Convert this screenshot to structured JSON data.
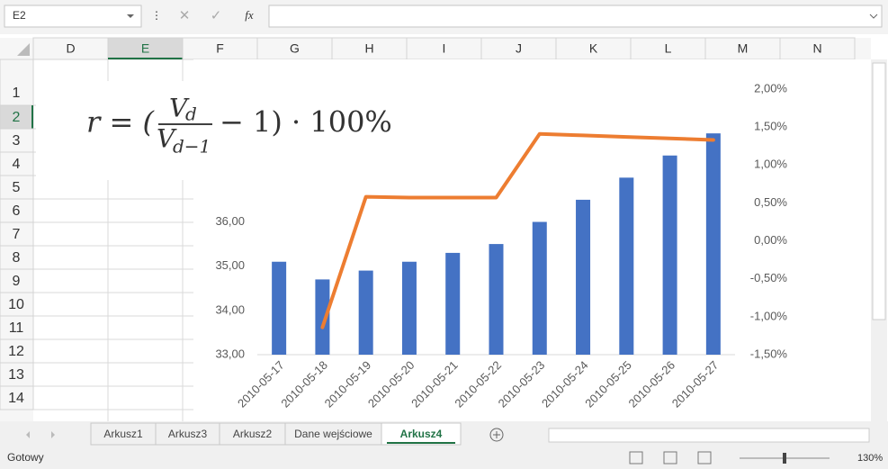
{
  "ui": {
    "name_box": "E2",
    "fx": "fx",
    "columns": [
      "D",
      "E",
      "F",
      "G",
      "H",
      "I",
      "J",
      "K",
      "L",
      "M",
      "N"
    ],
    "rows": [
      "1",
      "2",
      "3",
      "4",
      "5",
      "6",
      "7",
      "8",
      "9",
      "10",
      "11",
      "12",
      "13",
      "14"
    ],
    "selected_column": 1,
    "selected_row": 1,
    "sheet_tabs": [
      "Arkusz1",
      "Arkusz3",
      "Arkusz2",
      "Dane wejściowe",
      "Arkusz4"
    ],
    "active_tab": 4,
    "status": "Gotowy",
    "zoom": "130%"
  },
  "formula": {
    "prefix": "r = (",
    "numerator": "V",
    "numerator_sub": "d",
    "denominator": "V",
    "denominator_sub": "d−1",
    "suffix": "− 1) · 100%"
  },
  "chart_data": {
    "type": "combo",
    "categories": [
      "2010-05-17",
      "2010-05-18",
      "2010-05-19",
      "2010-05-20",
      "2010-05-21",
      "2010-05-22",
      "2010-05-23",
      "2010-05-24",
      "2010-05-25",
      "2010-05-26",
      "2010-05-27"
    ],
    "series": [
      {
        "type": "bar",
        "color": "#4472c4",
        "values": [
          35.1,
          34.7,
          34.9,
          35.1,
          35.3,
          35.5,
          36.0,
          36.5,
          37.0,
          37.5,
          38.0
        ]
      },
      {
        "type": "line",
        "axis": "y2",
        "color": "#ed7d31",
        "values": [
          null,
          -1.14,
          0.58,
          0.57,
          0.57,
          0.57,
          1.41,
          1.39,
          1.37,
          1.35,
          1.33
        ]
      }
    ],
    "ylim": [
      33,
      39
    ],
    "yticks": [
      {
        "value": 33,
        "label": "33,00"
      },
      {
        "value": 34,
        "label": "34,00"
      },
      {
        "value": 35,
        "label": "35,00"
      },
      {
        "value": 36,
        "label": "36,00"
      }
    ],
    "y2lim": [
      -1.5,
      2
    ],
    "y2ticks": [
      {
        "value": -1.5,
        "label": "-1,50%"
      },
      {
        "value": -1,
        "label": "-1,00%"
      },
      {
        "value": -0.5,
        "label": "-0,50%"
      },
      {
        "value": 0,
        "label": "0,00%"
      },
      {
        "value": 0.5,
        "label": "0,50%"
      },
      {
        "value": 1,
        "label": "1,00%"
      },
      {
        "value": 1.5,
        "label": "1,50%"
      },
      {
        "value": 2,
        "label": "2,00%"
      }
    ]
  }
}
